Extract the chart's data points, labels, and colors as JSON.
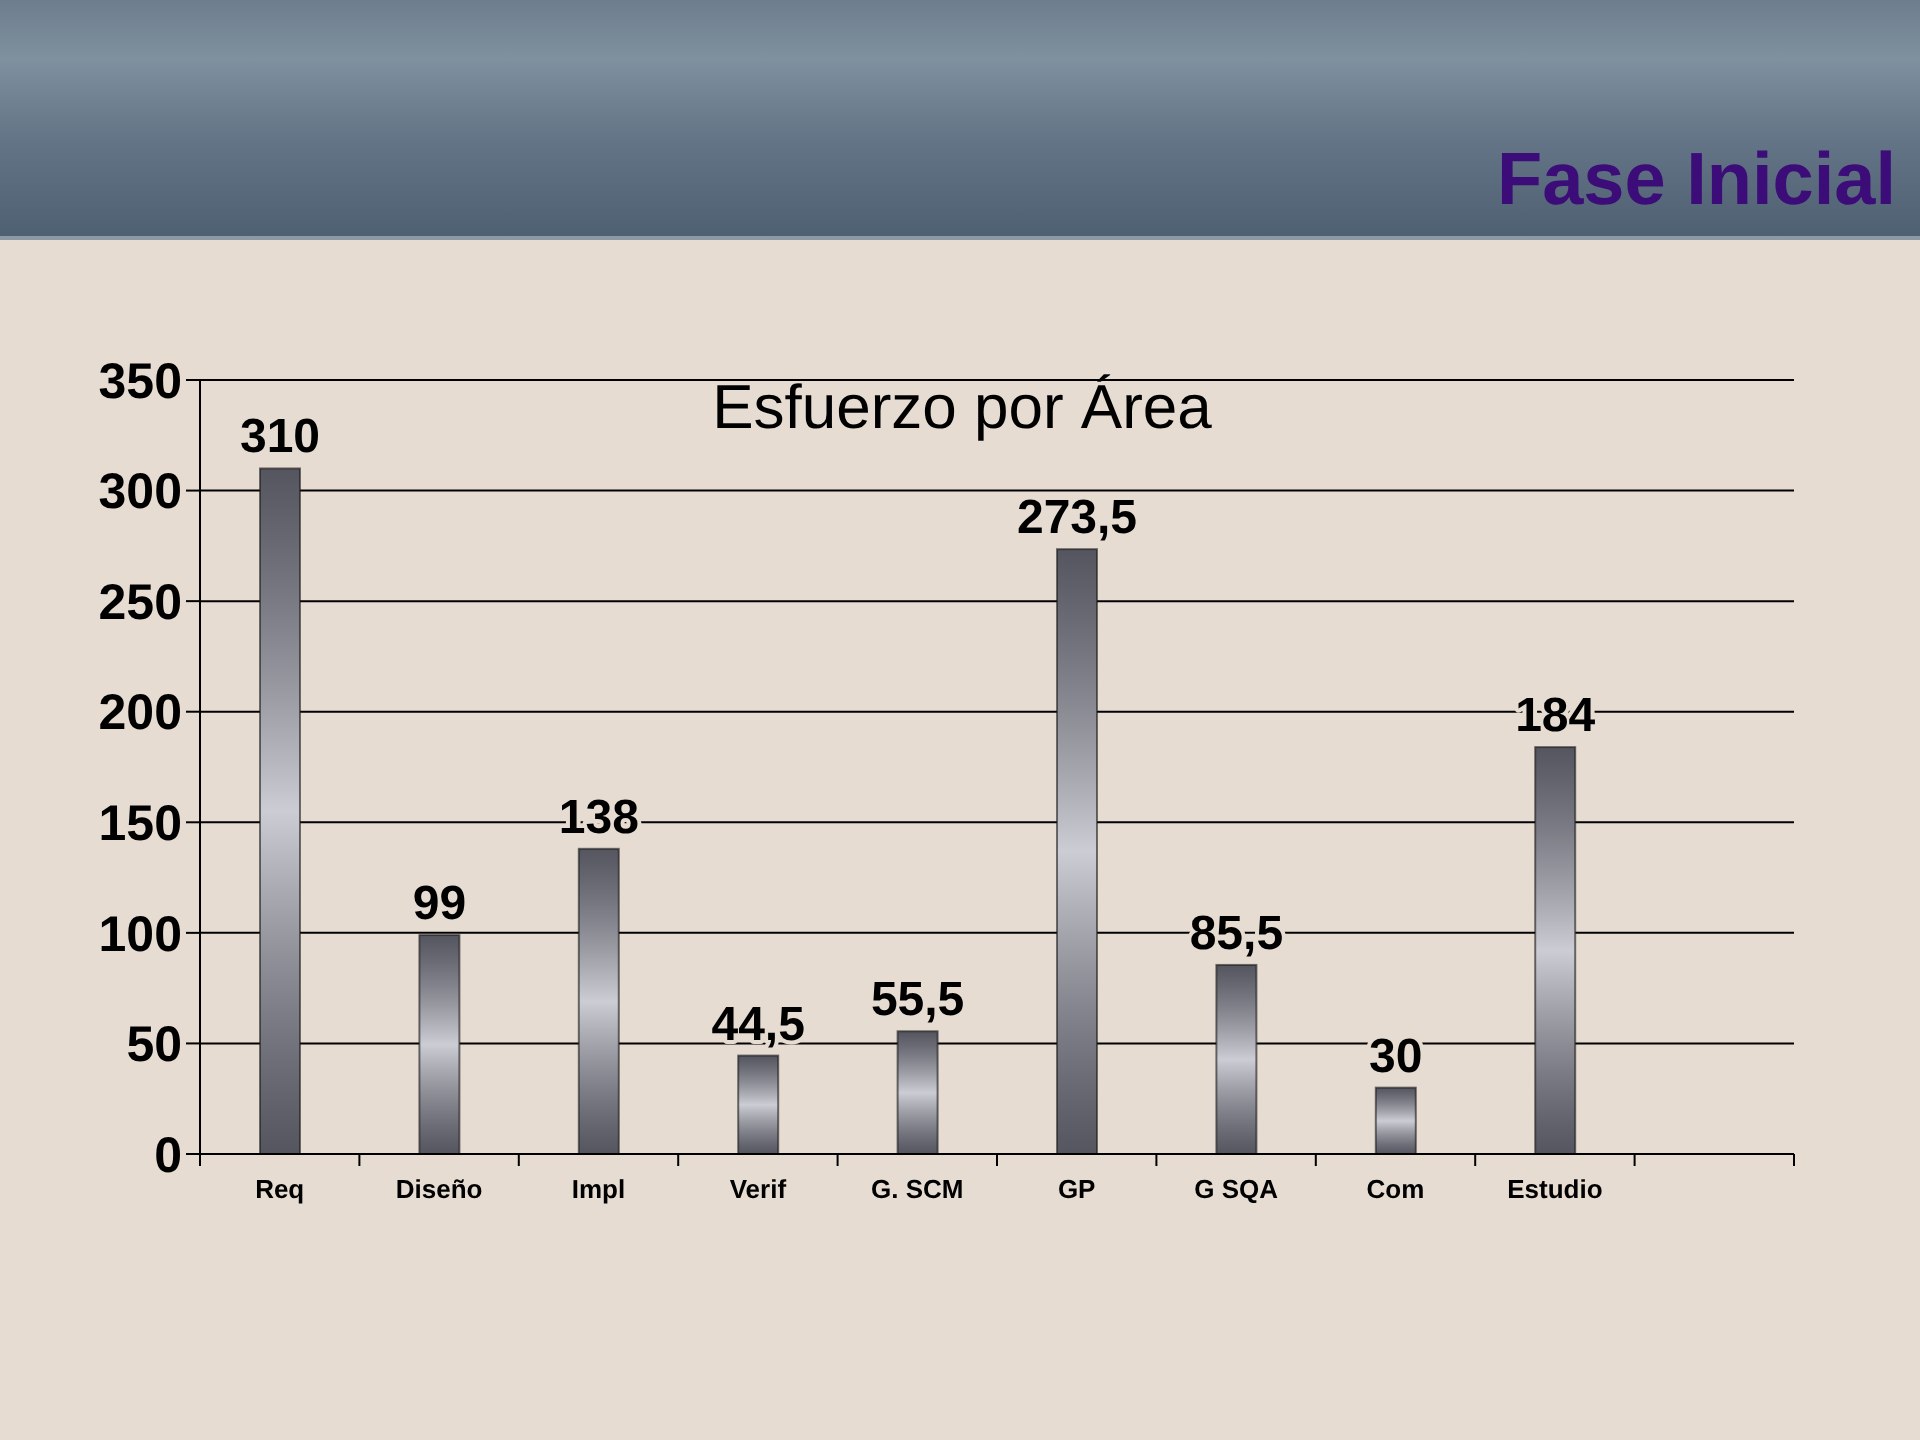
{
  "chart_data": {
    "type": "bar",
    "title": "Fase Inicial",
    "subtitle": "Esfuerzo por Área",
    "categories": [
      "Req",
      "Diseño",
      "Impl",
      "Verif",
      "G. SCM",
      "GP",
      "G SQA",
      "Com",
      "Estudio",
      null
    ],
    "values": [
      310,
      99,
      138,
      44.5,
      55.5,
      273.5,
      85.5,
      30,
      184,
      null
    ],
    "value_labels": [
      "310",
      "99",
      "138",
      "44,5",
      "55,5",
      "273,5",
      "85,5",
      "30",
      "184",
      null
    ],
    "color": "#8e8ea0",
    "ylim": [
      0,
      350
    ],
    "yticks": [
      0,
      50,
      100,
      150,
      200,
      250,
      300,
      350
    ],
    "grid": "y"
  }
}
